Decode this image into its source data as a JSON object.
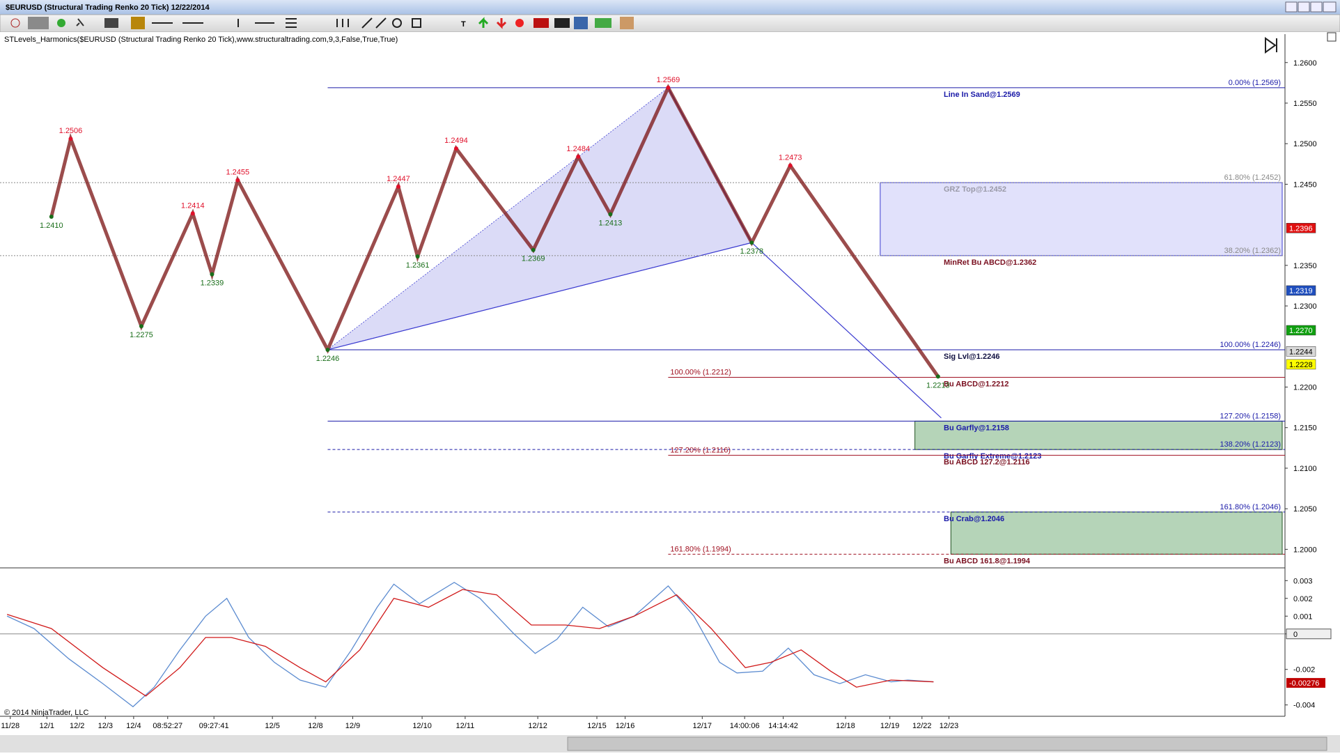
{
  "window": {
    "title": "$EURUSD (Structural Trading Renko 20 Tick)  12/22/2014"
  },
  "indicator_label": "STLevels_Harmonics($EURUSD (Structural Trading Renko 20 Tick),www.structuraltrading.com,9,3,False,True,True)",
  "copyright": "© 2014 NinjaTrader, LLC",
  "chart_data": [
    {
      "type": "price",
      "xlim": [
        0,
        200
      ],
      "xticks": [
        {
          "value": 1.6,
          "label": "11/28"
        },
        {
          "value": 7.3,
          "label": "12/1"
        },
        {
          "value": 12,
          "label": "12/2"
        },
        {
          "value": 16.4,
          "label": "12/3"
        },
        {
          "value": 20.8,
          "label": "12/4"
        },
        {
          "value": 26.1,
          "label": "08:52:27"
        },
        {
          "value": 33.3,
          "label": "09:27:41"
        },
        {
          "value": 42.4,
          "label": "12/5"
        },
        {
          "value": 49.1,
          "label": "12/8"
        },
        {
          "value": 54.9,
          "label": "12/9"
        },
        {
          "value": 65.7,
          "label": "12/10"
        },
        {
          "value": 72.4,
          "label": "12/11"
        },
        {
          "value": 83.7,
          "label": "12/12"
        },
        {
          "value": 92.9,
          "label": "12/15"
        },
        {
          "value": 97.3,
          "label": "12/16"
        },
        {
          "value": 109.3,
          "label": "12/17"
        },
        {
          "value": 115.9,
          "label": "14:00:06"
        },
        {
          "value": 121.9,
          "label": "14:14:42"
        },
        {
          "value": 131.6,
          "label": "12/18"
        },
        {
          "value": 138.5,
          "label": "12/19"
        },
        {
          "value": 143.5,
          "label": "12/22"
        },
        {
          "value": 147.7,
          "label": "12/23"
        }
      ],
      "ylim": [
        1.1978,
        1.2635
      ],
      "yticks": [
        {
          "value": 1.26,
          "label": "1.2600"
        },
        {
          "value": 1.255,
          "label": "1.2550"
        },
        {
          "value": 1.25,
          "label": "1.2500"
        },
        {
          "value": 1.245,
          "label": "1.2450"
        },
        {
          "value": 1.235,
          "label": "1.2350"
        },
        {
          "value": 1.23,
          "label": "1.2300"
        },
        {
          "value": 1.22,
          "label": "1.2200"
        },
        {
          "value": 1.215,
          "label": "1.2150"
        },
        {
          "value": 1.21,
          "label": "1.2100"
        },
        {
          "value": 1.205,
          "label": "1.2050"
        },
        {
          "value": 1.2,
          "label": "1.2000"
        }
      ],
      "swings": {
        "x": [
          8,
          11,
          22,
          30,
          33,
          37,
          51,
          62,
          65,
          71,
          83,
          90,
          95,
          104,
          117,
          123,
          146
        ],
        "values": [
          1.241,
          1.2506,
          1.2275,
          1.2414,
          1.2339,
          1.2455,
          1.2246,
          1.2447,
          1.2361,
          1.2494,
          1.2369,
          1.2484,
          1.2413,
          1.2569,
          1.2378,
          1.2473,
          1.2213
        ],
        "value_labels": [
          "1.2410",
          "1.2506",
          "1.2275",
          "1.2414",
          "1.2339",
          "1.2455",
          "1.2246",
          "1.2447",
          "1.2361",
          "1.2494",
          "1.2369",
          "1.2484",
          "1.2413",
          "1.2569",
          "1.2378",
          "1.2473",
          "1.2213"
        ],
        "kinds": [
          "low",
          "high",
          "low",
          "high",
          "low",
          "high",
          "low",
          "high",
          "low",
          "high",
          "low",
          "high",
          "low",
          "high",
          "low",
          "high",
          "low"
        ],
        "high_color": "#e0102a",
        "low_color": "#1a6e1a",
        "line_color": "#7a1010"
      },
      "pattern": {
        "x": [
          51,
          104,
          117,
          146.5
        ],
        "values": [
          1.2246,
          1.2569,
          1.2378,
          1.2162
        ],
        "color": "#3a3ad0"
      },
      "levels": [
        {
          "label": "Line In Sand@1.2569",
          "value": 1.2569,
          "color": "#1a1aa8",
          "text_color": "#1a1aa8",
          "style": "solid",
          "start_x": 51,
          "pct_label": "0.00% (1.2569)",
          "pct_side": "right"
        },
        {
          "label": "GRZ Top@1.2452",
          "value": 1.2452,
          "color": "#888888",
          "text_color": "#9a9aa8",
          "style": "dotted",
          "start_x": 0,
          "pct_label": "61.80% (1.2452)",
          "pct_side": "right"
        },
        {
          "label": "MinRet Bu ABCD@1.2362",
          "value": 1.2362,
          "color": "#888888",
          "text_color": "#7a1020",
          "style": "dotted",
          "start_x": 0,
          "pct_label": "38.20% (1.2362)",
          "pct_side": "right"
        },
        {
          "label": "Sig Lvl@1.2246",
          "value": 1.2246,
          "color": "#1a1aa8",
          "text_color": "#101040",
          "style": "solid",
          "start_x": 51,
          "pct_label": "100.00% (1.2246)",
          "pct_side": "right"
        },
        {
          "label": "Bu ABCD@1.2212",
          "value": 1.2212,
          "color": "#a01020",
          "text_color": "#7a1020",
          "style": "solid",
          "start_x": 104,
          "pct_label": "100.00% (1.2212)",
          "pct_side": "left"
        },
        {
          "label": "Bu Garfly@1.2158",
          "value": 1.2158,
          "color": "#1a1aa8",
          "text_color": "#1a1aa8",
          "style": "solid",
          "start_x": 51,
          "pct_label": "127.20% (1.2158)",
          "pct_side": "right"
        },
        {
          "label": "Bu Garfly Extreme@1.2123",
          "value": 1.2123,
          "color": "#1a1aa8",
          "text_color": "#1a1aa8",
          "style": "dashed",
          "start_x": 51,
          "pct_label": "138.20% (1.2123)",
          "pct_side": "right"
        },
        {
          "label": "Bu ABCD 127.2@1.2116",
          "value": 1.2116,
          "color": "#a01020",
          "text_color": "#7a1020",
          "style": "solid",
          "start_x": 104,
          "pct_label": "127.20% (1.2116)",
          "pct_side": "left"
        },
        {
          "label": "Bu Crab@1.2046",
          "value": 1.2046,
          "color": "#1a1aa8",
          "text_color": "#1a1aa8",
          "style": "dashed",
          "start_x": 51,
          "pct_label": "161.80% (1.2046)",
          "pct_side": "right"
        },
        {
          "label": "Bu ABCD 161.8@1.1994",
          "value": 1.1994,
          "color": "#a01020",
          "text_color": "#7a1020",
          "style": "dashed",
          "start_x": 104,
          "pct_label": "161.80% (1.1994)",
          "pct_side": "left"
        }
      ],
      "zones": [
        {
          "top": 1.2452,
          "bottom": 1.2362,
          "start_x": 137,
          "color": "#dcdcfa",
          "border": "#3a3ad0"
        },
        {
          "top": 1.2158,
          "bottom": 1.2123,
          "start_x": 142.4,
          "color": "#a8ccab",
          "border": "#205020"
        },
        {
          "top": 1.2046,
          "bottom": 1.1994,
          "start_x": 148,
          "color": "#a8ccab",
          "border": "#205020"
        }
      ],
      "price_markers": [
        {
          "value": 1.2396,
          "label": "1.2396",
          "color": "#e01010",
          "text_color": "#ffffff"
        },
        {
          "value": 1.2319,
          "label": "1.2319",
          "color": "#1f4fbf",
          "text_color": "#ffffff"
        },
        {
          "value": 1.227,
          "label": "1.2270",
          "color": "#10a010",
          "text_color": "#ffffff"
        },
        {
          "value": 1.2244,
          "label": "1.2244",
          "color": "#d8d8d8",
          "text_color": "#000000"
        },
        {
          "value": 1.2228,
          "label": "1.2228",
          "color": "#ffff00",
          "text_color": "#000000"
        }
      ]
    },
    {
      "type": "line",
      "xlim": [
        0,
        200
      ],
      "ylim": [
        -0.0046,
        0.0036
      ],
      "yticks": [
        0.003,
        0.002,
        0.001,
        0,
        -0.002,
        -0.004
      ],
      "lines": [
        {
          "color": "#5b8bd0",
          "x": [
            1.1,
            5.3,
            10.7,
            16,
            20.7,
            24,
            28,
            32,
            35.3,
            38.7,
            42.7,
            46.7,
            50.7,
            54.7,
            58.7,
            61.3,
            65.3,
            70.7,
            74.7,
            80,
            83.3,
            86.7,
            90.7,
            94.7,
            98.7,
            104,
            108,
            112,
            114.7,
            118.7,
            122.7,
            126.7,
            130.7,
            134.7,
            138.7,
            141.3,
            145.3
          ],
          "values": [
            0.001,
            0.0003,
            -0.0014,
            -0.0028,
            -0.0041,
            -0.003,
            -0.0009,
            0.001,
            0.002,
            -0.0002,
            -0.0016,
            -0.0026,
            -0.003,
            -0.0009,
            0.0015,
            0.0028,
            0.0017,
            0.0029,
            0.002,
            0,
            -0.0011,
            -0.0003,
            0.0015,
            0.0004,
            0.001,
            0.0027,
            0.001,
            -0.0016,
            -0.0022,
            -0.0021,
            -0.0008,
            -0.0023,
            -0.0028,
            -0.0023,
            -0.0027,
            -0.0026,
            -0.0027
          ]
        },
        {
          "color": "#d01818",
          "x": [
            1.1,
            8,
            16,
            22.7,
            28,
            32,
            36,
            41.3,
            46.7,
            50.7,
            56,
            61.3,
            66.7,
            72,
            77.3,
            82.7,
            88,
            93.3,
            98.7,
            105.3,
            110.7,
            116,
            120,
            124.7,
            129.3,
            133.3,
            138.7,
            145.3
          ],
          "values": [
            0.0011,
            0.0003,
            -0.0019,
            -0.0035,
            -0.0019,
            -0.0002,
            -0.0002,
            -0.0007,
            -0.0019,
            -0.0027,
            -0.0009,
            0.002,
            0.0015,
            0.0025,
            0.0022,
            0.0005,
            0.0005,
            0.0003,
            0.001,
            0.0022,
            0.0003,
            -0.0019,
            -0.0016,
            -0.0009,
            -0.0021,
            -0.003,
            -0.0026,
            -0.0027
          ]
        }
      ],
      "current": {
        "value": -0.00276,
        "color": "#c00000"
      }
    }
  ]
}
